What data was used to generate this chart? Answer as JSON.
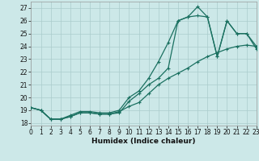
{
  "xlabel": "Humidex (Indice chaleur)",
  "background_color": "#cce8e8",
  "grid_color": "#aacccc",
  "line_color": "#1a7060",
  "xlim": [
    0,
    23
  ],
  "ylim": [
    17.8,
    27.5
  ],
  "xticks": [
    0,
    1,
    2,
    3,
    4,
    5,
    6,
    7,
    8,
    9,
    10,
    11,
    12,
    13,
    14,
    15,
    16,
    17,
    18,
    19,
    20,
    21,
    22,
    23
  ],
  "yticks": [
    18,
    19,
    20,
    21,
    22,
    23,
    24,
    25,
    26,
    27
  ],
  "series1_x": [
    0,
    1,
    2,
    3,
    4,
    5,
    6,
    7,
    8,
    9,
    10,
    11,
    12,
    13,
    14,
    15,
    16,
    17,
    18,
    19,
    20,
    21,
    22,
    23
  ],
  "series1_y": [
    19.2,
    19.0,
    18.3,
    18.3,
    18.5,
    18.8,
    18.8,
    18.7,
    18.7,
    18.8,
    19.7,
    20.3,
    21.0,
    21.5,
    22.3,
    26.0,
    26.3,
    27.1,
    26.3,
    23.2,
    26.0,
    25.0,
    25.0,
    24.0
  ],
  "series2_x": [
    0,
    1,
    2,
    3,
    4,
    5,
    6,
    7,
    8,
    9,
    10,
    11,
    12,
    13,
    14,
    15,
    16,
    17,
    18,
    19,
    20,
    21,
    22,
    23
  ],
  "series2_y": [
    19.2,
    19.0,
    18.3,
    18.3,
    18.6,
    18.9,
    18.9,
    18.8,
    18.8,
    19.0,
    20.0,
    20.5,
    21.5,
    22.8,
    24.3,
    26.0,
    26.3,
    26.4,
    26.3,
    23.2,
    26.0,
    25.0,
    25.0,
    23.8
  ],
  "series3_x": [
    0,
    1,
    2,
    3,
    4,
    5,
    6,
    7,
    8,
    9,
    10,
    11,
    12,
    13,
    14,
    15,
    16,
    17,
    18,
    19,
    20,
    21,
    22,
    23
  ],
  "series3_y": [
    19.2,
    19.0,
    18.3,
    18.3,
    18.5,
    18.8,
    18.8,
    18.7,
    18.7,
    18.9,
    19.3,
    19.6,
    20.3,
    21.0,
    21.5,
    21.9,
    22.3,
    22.8,
    23.2,
    23.5,
    23.8,
    24.0,
    24.1,
    24.0
  ]
}
